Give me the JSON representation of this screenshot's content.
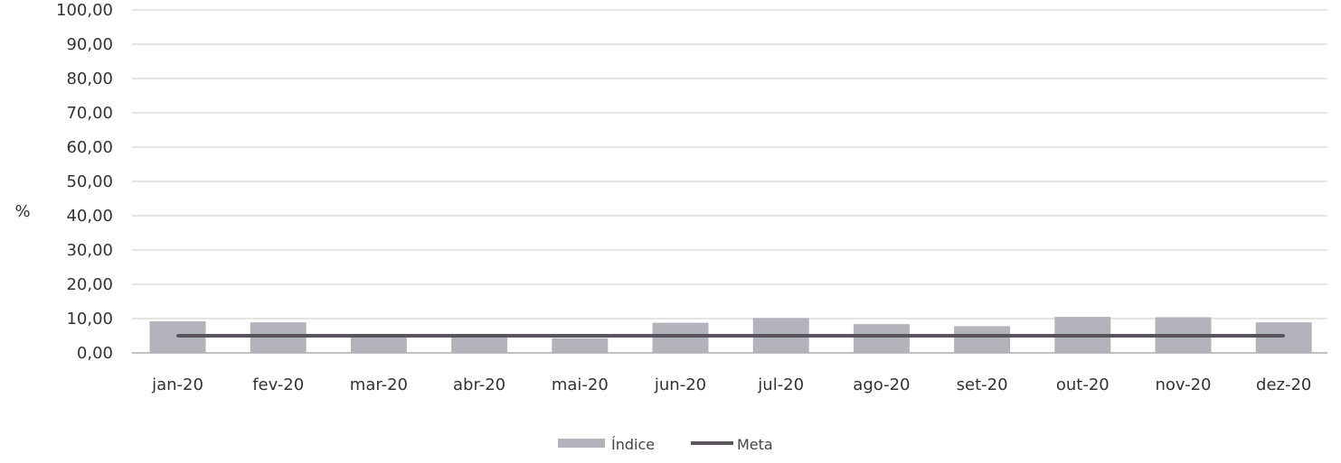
{
  "chart_data": {
    "type": "bar",
    "title": "",
    "xlabel": "",
    "ylabel": "%",
    "ylim": [
      0,
      100
    ],
    "yticks": [
      "0,00",
      "10,00",
      "20,00",
      "30,00",
      "40,00",
      "50,00",
      "60,00",
      "70,00",
      "80,00",
      "90,00",
      "100,00"
    ],
    "grid": true,
    "legend_position": "bottom-center",
    "categories": [
      "jan-20",
      "fev-20",
      "mar-20",
      "abr-20",
      "mai-20",
      "jun-20",
      "jul-20",
      "ago-20",
      "set-20",
      "out-20",
      "nov-20",
      "dez-20"
    ],
    "series": [
      {
        "name": "Índice",
        "type": "bar",
        "color": "#b3b3bb",
        "values": [
          9.2,
          8.9,
          5.0,
          5.2,
          4.3,
          8.8,
          10.2,
          8.4,
          7.8,
          10.5,
          10.4,
          8.9
        ]
      },
      {
        "name": "Meta",
        "type": "line",
        "color": "#5a555d",
        "values": [
          5.0,
          5.0,
          5.0,
          5.0,
          5.0,
          5.0,
          5.0,
          5.0,
          5.0,
          5.0,
          5.0,
          5.0
        ]
      }
    ]
  }
}
